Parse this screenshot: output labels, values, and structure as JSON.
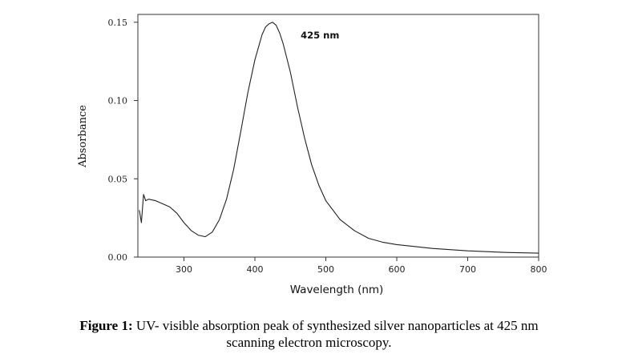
{
  "chart_data": {
    "type": "line",
    "title": "",
    "xlabel": "Wavelength (nm)",
    "ylabel": "Absorbance",
    "xlim": [
      235,
      800
    ],
    "ylim": [
      0,
      0.155
    ],
    "x_ticks": [
      300,
      400,
      500,
      600,
      700,
      800
    ],
    "x_tick_labels": [
      "300",
      "400",
      "500",
      "600",
      "700",
      "800"
    ],
    "y_ticks": [
      0,
      0.05,
      0.1,
      0.15
    ],
    "y_tick_labels": [
      "0.00",
      "0.05",
      "0.10",
      "0.15"
    ],
    "grid": false,
    "legend": "none",
    "annotation": {
      "text": "425 nm",
      "x": 425,
      "y": 0.15
    },
    "series": [
      {
        "x": [
          237,
          240,
          243,
          246,
          250,
          260,
          270,
          280,
          290,
          300,
          310,
          320,
          330,
          340,
          350,
          360,
          370,
          380,
          390,
          400,
          410,
          415,
          420,
          425,
          430,
          435,
          440,
          450,
          460,
          470,
          480,
          490,
          500,
          520,
          540,
          560,
          580,
          600,
          650,
          700,
          750,
          800
        ],
        "y": [
          0.03,
          0.022,
          0.04,
          0.036,
          0.037,
          0.036,
          0.034,
          0.032,
          0.028,
          0.022,
          0.017,
          0.014,
          0.013,
          0.016,
          0.024,
          0.037,
          0.056,
          0.08,
          0.105,
          0.126,
          0.142,
          0.147,
          0.149,
          0.15,
          0.148,
          0.143,
          0.136,
          0.118,
          0.096,
          0.076,
          0.059,
          0.046,
          0.036,
          0.024,
          0.017,
          0.012,
          0.0095,
          0.008,
          0.0055,
          0.004,
          0.003,
          0.0025
        ]
      }
    ],
    "line_color": "#222222"
  },
  "caption": {
    "label": "Figure 1:",
    "line1": " UV- visible absorption peak of synthesized silver nanoparticles at 425 nm",
    "line2": "scanning electron microscopy."
  }
}
